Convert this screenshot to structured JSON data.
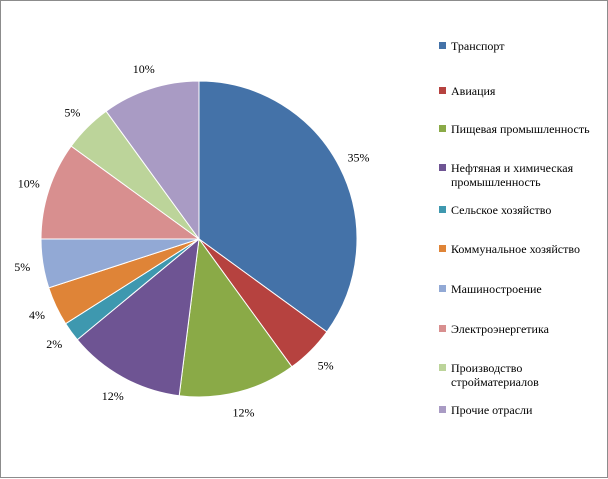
{
  "chart_data": {
    "type": "pie",
    "title": "",
    "legend_position": "right",
    "start_angle_deg": 0,
    "direction": "clockwise",
    "slices": [
      {
        "label": "Транспорт",
        "value": 35,
        "display": "35%",
        "color": "#4472A8"
      },
      {
        "label": "Авиация",
        "value": 5,
        "display": "5%",
        "color": "#B6423F"
      },
      {
        "label": "Пищевая промышленность",
        "value": 12,
        "display": "12%",
        "color": "#8AAA47"
      },
      {
        "label": "Нефтяная и химическая промышленность",
        "value": 12,
        "display": "12%",
        "color": "#6E5493"
      },
      {
        "label": "Сельское хозяйство",
        "value": 2,
        "display": "2%",
        "color": "#3E98AF"
      },
      {
        "label": "Коммунальное хозяйство",
        "value": 4,
        "display": "4%",
        "color": "#DF8437"
      },
      {
        "label": "Машиностроение",
        "value": 5,
        "display": "5%",
        "color": "#92A9D5"
      },
      {
        "label": "Электроэнергетика",
        "value": 10,
        "display": "10%",
        "color": "#D88F8F"
      },
      {
        "label": "Производство стройматериалов",
        "value": 5,
        "display": "5%",
        "color": "#BCD49A"
      },
      {
        "label": "Прочие отрасли",
        "value": 10,
        "display": "10%",
        "color": "#A99BC4"
      }
    ]
  }
}
